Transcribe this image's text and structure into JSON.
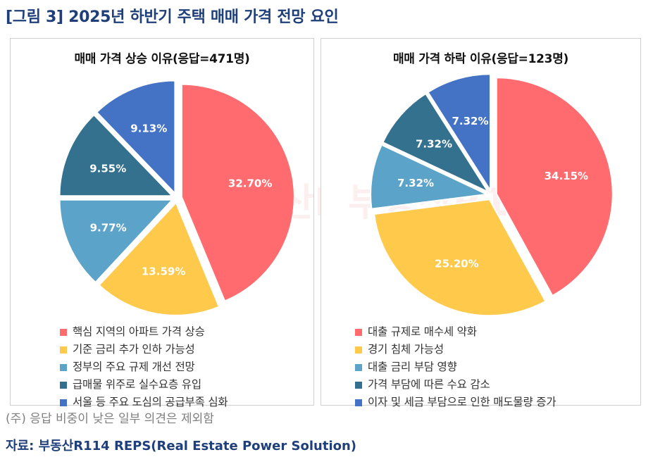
{
  "figure_title": "[그림 3] 2025년 하반기 주택 매매 가격 전망 요인",
  "watermark": "부동산R114",
  "footnote": "(주) 응답 비중이 낮은 일부 의견은 제외함",
  "source": "자료: 부동산R114 REPS(Real Estate Power Solution)",
  "colors": {
    "red": "#ff6b6e",
    "yellow": "#ffc94b",
    "lightblue": "#5ba3c8",
    "teal": "#33718f",
    "blue": "#4472c4",
    "title_blue": "#1f3f7a"
  },
  "chart_data": [
    {
      "type": "pie",
      "title": "매매 가격 상승 이유(응답=471명)",
      "legend_position": "bottom",
      "slices": [
        {
          "label": "핵심 지역의 아파트 가격 상승",
          "value": 32.7,
          "display": "32.70%",
          "color": "#ff6b6e"
        },
        {
          "label": "기준 금리 추가 인하 가능성",
          "value": 13.59,
          "display": "13.59%",
          "color": "#ffc94b"
        },
        {
          "label": "정부의 주요 규제 개선 전망",
          "value": 9.77,
          "display": "9.77%",
          "color": "#5ba3c8"
        },
        {
          "label": "급매물 위주로 실수요층 유입",
          "value": 9.55,
          "display": "9.55%",
          "color": "#33718f"
        },
        {
          "label": "서울 등 주요 도심의 공급부족 심화",
          "value": 9.13,
          "display": "9.13%",
          "color": "#4472c4"
        }
      ]
    },
    {
      "type": "pie",
      "title": "매매 가격 하락 이유(응답=123명)",
      "legend_position": "bottom",
      "slices": [
        {
          "label": "대출 규제로 매수세 약화",
          "value": 34.15,
          "display": "34.15%",
          "color": "#ff6b6e"
        },
        {
          "label": "경기 침체 가능성",
          "value": 25.2,
          "display": "25.20%",
          "color": "#ffc94b"
        },
        {
          "label": "대출 금리 부담 영향",
          "value": 7.32,
          "display": "7.32%",
          "color": "#5ba3c8"
        },
        {
          "label": "가격 부담에 따른 수요 감소",
          "value": 7.32,
          "display": "7.32%",
          "color": "#33718f"
        },
        {
          "label": "이자 및 세금 부담으로 인한 매도물량 증가",
          "value": 7.32,
          "display": "7.32%",
          "color": "#4472c4"
        }
      ]
    }
  ]
}
